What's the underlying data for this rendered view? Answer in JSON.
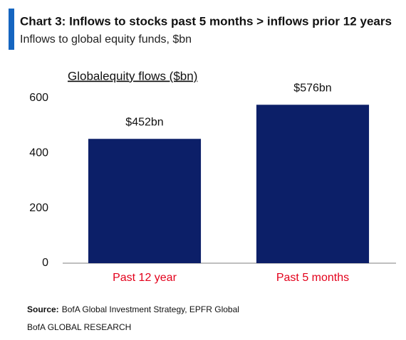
{
  "chart_data": {
    "type": "bar",
    "title": "Chart 3: Inflows to stocks past 5 months > inflows prior 12 years",
    "subtitle": "Inflows to global equity funds, $bn",
    "inner_title": "Globalequity flows ($bn)",
    "categories": [
      "Past 12 year",
      "Past 5 months"
    ],
    "values": [
      452,
      576
    ],
    "value_labels": [
      "$452bn",
      "$576bn"
    ],
    "color": "#0c1f68",
    "category_color": "#e3001b",
    "ylim": [
      0,
      600
    ],
    "yticks": [
      0,
      200,
      400,
      600
    ],
    "grid": false,
    "source_label": "Source:",
    "source": "BofA Global Investment Strategy, EPFR Global",
    "footer": "BofA GLOBAL RESEARCH"
  }
}
